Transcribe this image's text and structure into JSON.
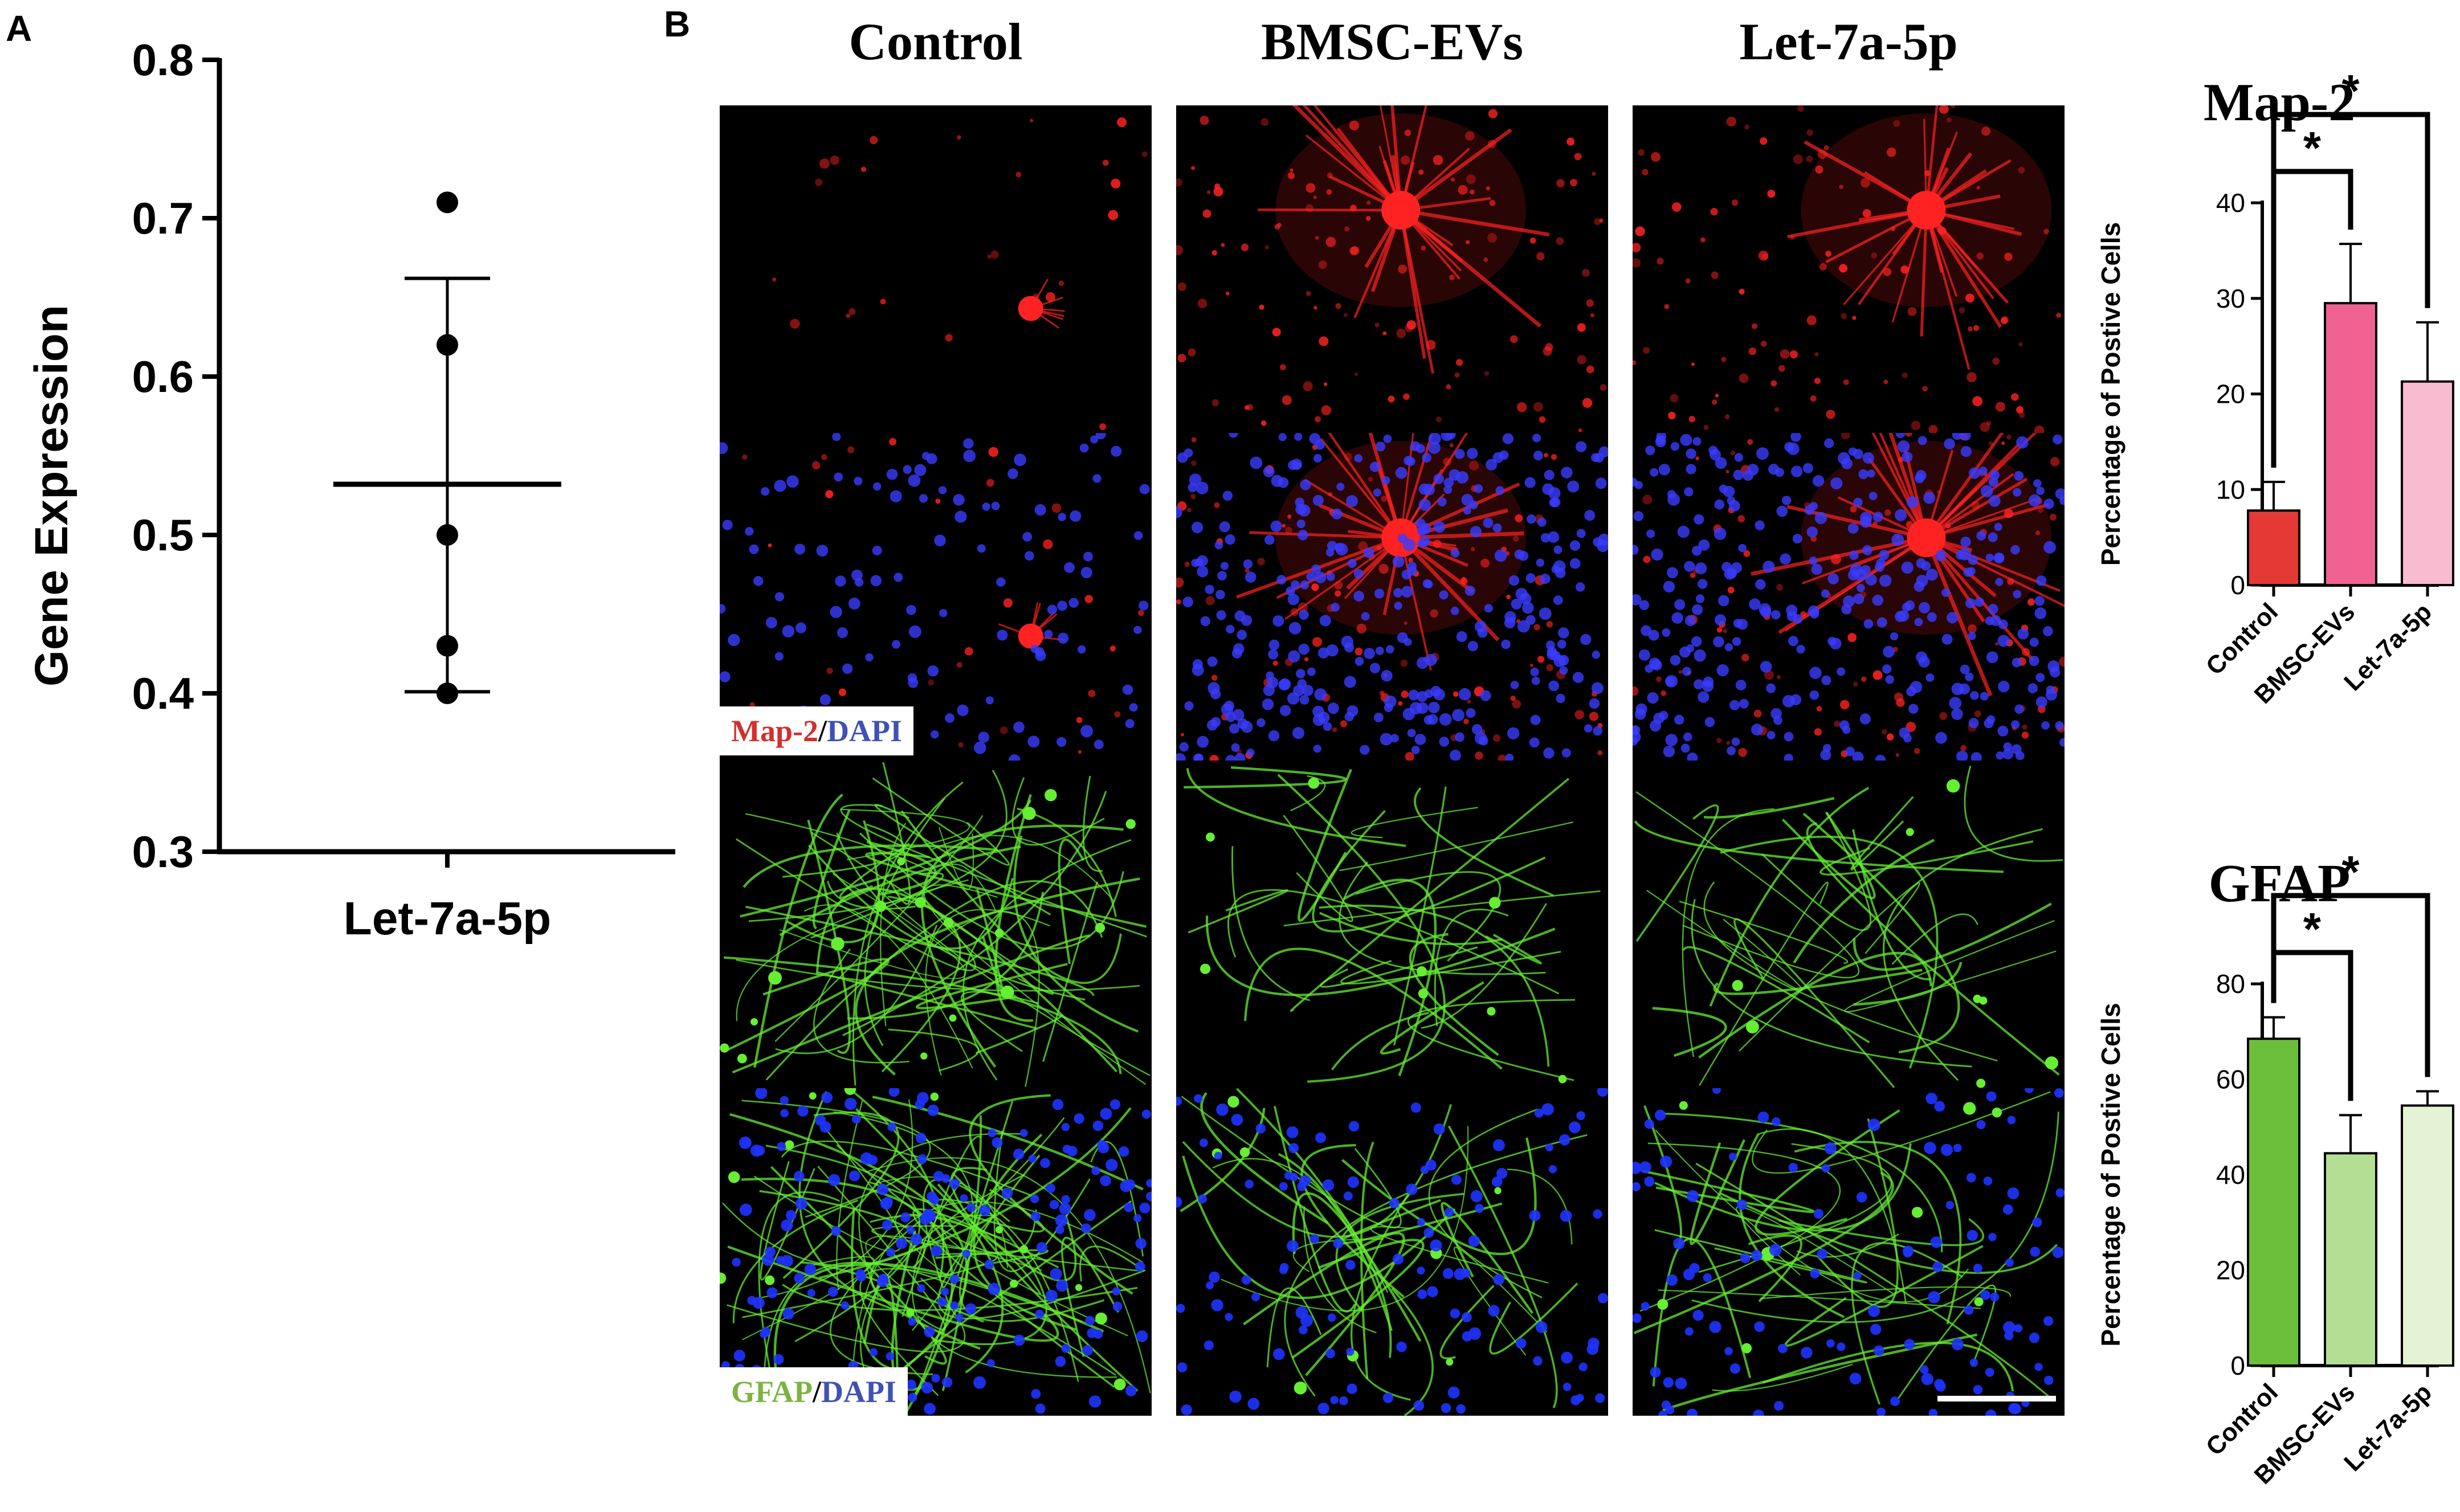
{
  "panel_a": {
    "letter": "A",
    "chart_data": {
      "type": "scatter",
      "title": "",
      "xlabel": "",
      "ylabel": "Gene Expression",
      "categories": [
        "Let-7a-5p"
      ],
      "points": [
        0.71,
        0.62,
        0.5,
        0.43,
        0.4
      ],
      "mean": 0.532,
      "error_upper": 0.662,
      "error_lower": 0.401,
      "ylim": [
        0.3,
        0.8
      ],
      "yticks": [
        "0.3",
        "0.4",
        "0.5",
        "0.6",
        "0.7",
        "0.8"
      ],
      "grid": false
    }
  },
  "panel_b": {
    "letter": "B",
    "columns": [
      "Control",
      "BMSC-EVs",
      "Let-7a-5p"
    ],
    "rows": [
      "Map-2",
      "Map-2/DAPI",
      "GFAP",
      "GFAP/DAPI"
    ],
    "legend_map2": {
      "marker": "Map-2",
      "sep": "/",
      "stain": "DAPI",
      "marker_color": "#d32f2f",
      "stain_color": "#3f51b5"
    },
    "legend_gfap": {
      "marker": "GFAP",
      "sep": "/",
      "stain": "DAPI",
      "marker_color": "#7cb342",
      "stain_color": "#3f51b5"
    },
    "colors": {
      "map2": "#ff2020",
      "gfap": "#66ee33",
      "dapi": "#2233ff"
    }
  },
  "chart_data": [
    {
      "type": "bar",
      "title": "Map-2",
      "xlabel": "",
      "ylabel": "Percentage of Postive Cells",
      "categories": [
        "Control",
        "BMSC-EVs",
        "Let-7a-5p"
      ],
      "values": [
        7.8,
        29.5,
        21.3
      ],
      "errors": [
        3.0,
        6.2,
        6.2
      ],
      "colors": [
        "#e53935",
        "#f06292",
        "#f8bbd0"
      ],
      "ylim": [
        0,
        40
      ],
      "yticks": [
        "0",
        "10",
        "20",
        "30",
        "40"
      ],
      "significance": [
        "*",
        "*"
      ],
      "grid": false
    },
    {
      "type": "bar",
      "title": "GFAP",
      "xlabel": "",
      "ylabel": "Percentage of Postive Cells",
      "categories": [
        "Control",
        "BMSC-EVs",
        "Let-7a-5p"
      ],
      "values": [
        68.5,
        44.5,
        54.5
      ],
      "errors": [
        4.5,
        8.0,
        3.0
      ],
      "colors": [
        "#6bbf3a",
        "#b5de95",
        "#e3f3d3"
      ],
      "ylim": [
        0,
        80
      ],
      "yticks": [
        "0",
        "20",
        "40",
        "60",
        "80"
      ],
      "significance": [
        "*",
        "*"
      ],
      "grid": false
    }
  ]
}
